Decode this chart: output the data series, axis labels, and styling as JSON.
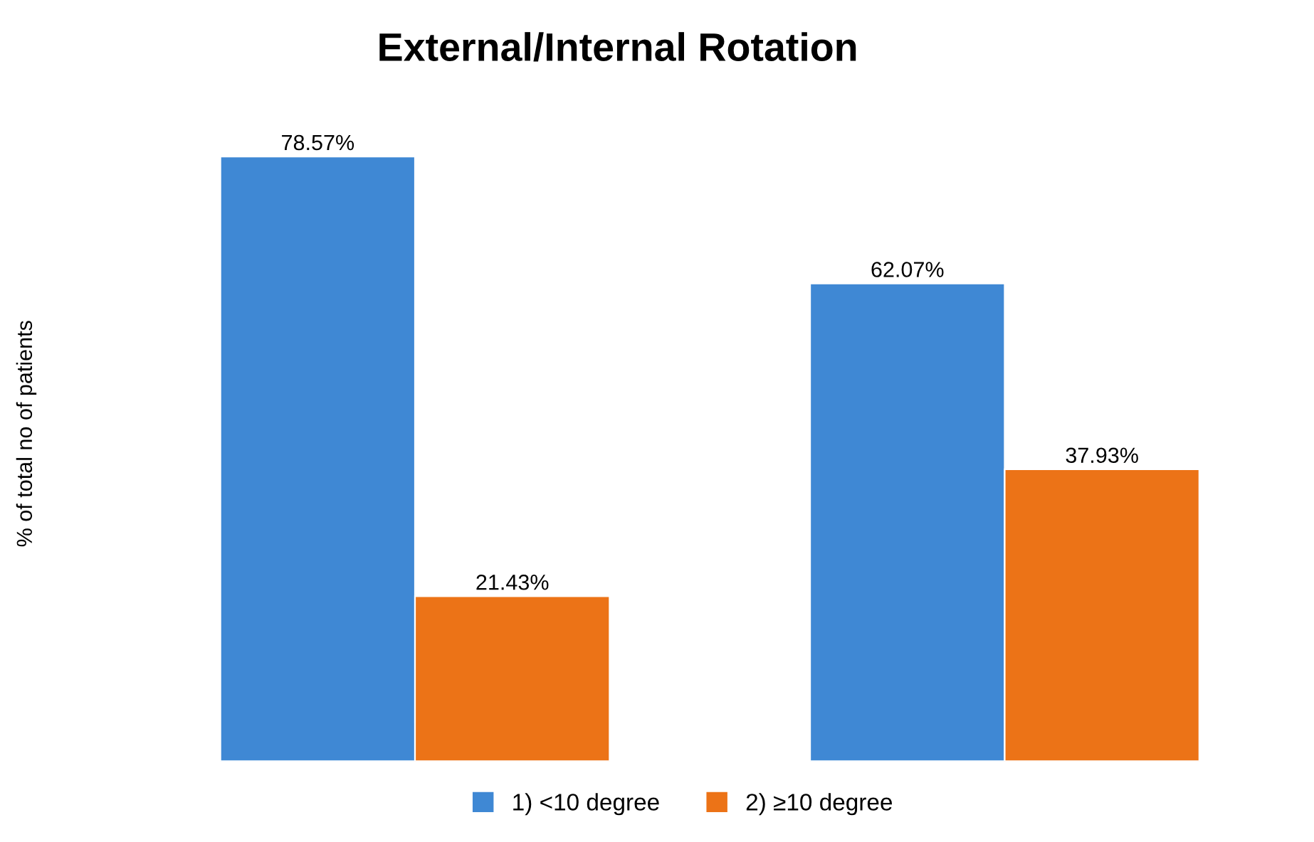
{
  "chart_data": {
    "type": "bar",
    "title": "External/Internal Rotation",
    "ylabel": "% of total no of patients",
    "categories": [
      null,
      null
    ],
    "series": [
      {
        "name": "1) <10 degree",
        "color": "#3f88d4",
        "values": [
          78.57,
          62.07
        ],
        "value_labels": [
          "78.57%",
          "62.07%"
        ]
      },
      {
        "name": "2) ≥10 degree",
        "color": "#ec7317",
        "values": [
          21.43,
          37.93
        ],
        "value_labels": [
          "21.43%",
          "37.93%"
        ]
      }
    ],
    "legend": "bottom"
  }
}
